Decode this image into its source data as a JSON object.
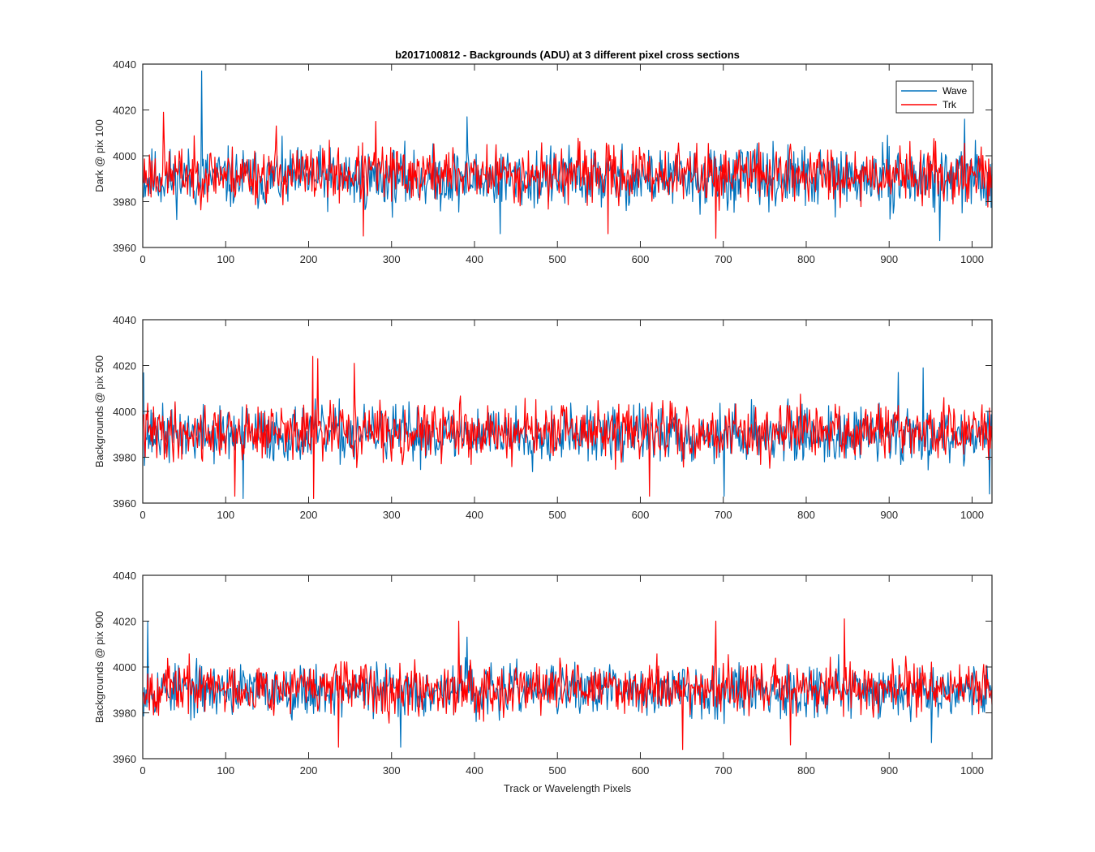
{
  "chart_data": [
    {
      "type": "line",
      "title": "b2017100812 - Backgrounds (ADU) at 3 different pixel cross sections",
      "xlabel": "",
      "ylabel": "Dark @ pix 100",
      "xlim": [
        0,
        1024
      ],
      "ylim": [
        3960,
        4040
      ],
      "xticks": [
        0,
        100,
        200,
        300,
        400,
        500,
        600,
        700,
        800,
        900,
        1000
      ],
      "yticks": [
        3960,
        3980,
        4000,
        4020,
        4040
      ],
      "legend": {
        "position": "top-right",
        "entries": [
          "Wave",
          "Trk"
        ]
      },
      "series": [
        {
          "name": "Wave",
          "color": "#0072BD",
          "mean": 3990,
          "spread": 13,
          "seed": 11,
          "peaks": [
            [
              70,
              4037
            ],
            [
              390,
              4017
            ],
            [
              990,
              4016
            ]
          ],
          "dips": [
            [
              960,
              3963
            ],
            [
              430,
              3966
            ]
          ]
        },
        {
          "name": "Trk",
          "color": "#FF0000",
          "mean": 3992,
          "spread": 12,
          "seed": 23,
          "peaks": [
            [
              24,
              4019
            ],
            [
              160,
              4013
            ],
            [
              280,
              4015
            ]
          ],
          "dips": [
            [
              265,
              3965
            ],
            [
              690,
              3964
            ],
            [
              560,
              3966
            ]
          ]
        }
      ]
    },
    {
      "type": "line",
      "title": "",
      "xlabel": "",
      "ylabel": "Backgrounds @ pix 500",
      "xlim": [
        0,
        1024
      ],
      "ylim": [
        3960,
        4040
      ],
      "xticks": [
        0,
        100,
        200,
        300,
        400,
        500,
        600,
        700,
        800,
        900,
        1000
      ],
      "yticks": [
        3960,
        3980,
        4000,
        4020,
        4040
      ],
      "series": [
        {
          "name": "Wave",
          "color": "#0072BD",
          "mean": 3990,
          "spread": 12,
          "seed": 37,
          "peaks": [
            [
              0,
              4017
            ],
            [
              940,
              4019
            ],
            [
              910,
              4017
            ]
          ],
          "dips": [
            [
              120,
              3962
            ],
            [
              700,
              3963
            ],
            [
              1020,
              3964
            ]
          ]
        },
        {
          "name": "Trk",
          "color": "#FF0000",
          "mean": 3991,
          "spread": 12,
          "seed": 41,
          "peaks": [
            [
              204,
              4024
            ],
            [
              210,
              4023
            ],
            [
              254,
              4021
            ]
          ],
          "dips": [
            [
              110,
              3963
            ],
            [
              205,
              3962
            ],
            [
              610,
              3963
            ]
          ]
        }
      ]
    },
    {
      "type": "line",
      "title": "",
      "xlabel": "Track or Wavelength Pixels",
      "ylabel": "Backgrounds @ pix 900",
      "xlim": [
        0,
        1024
      ],
      "ylim": [
        3960,
        4040
      ],
      "xticks": [
        0,
        100,
        200,
        300,
        400,
        500,
        600,
        700,
        800,
        900,
        1000
      ],
      "yticks": [
        3960,
        3980,
        4000,
        4020,
        4040
      ],
      "series": [
        {
          "name": "Wave",
          "color": "#0072BD",
          "mean": 3990,
          "spread": 11,
          "seed": 53,
          "peaks": [
            [
              5,
              4020
            ],
            [
              390,
              4013
            ]
          ],
          "dips": [
            [
              310,
              3965
            ],
            [
              950,
              3967
            ]
          ]
        },
        {
          "name": "Trk",
          "color": "#FF0000",
          "mean": 3991,
          "spread": 11,
          "seed": 67,
          "peaks": [
            [
              380,
              4020
            ],
            [
              845,
              4021
            ],
            [
              690,
              4020
            ]
          ],
          "dips": [
            [
              650,
              3964
            ],
            [
              235,
              3965
            ],
            [
              780,
              3966
            ]
          ]
        }
      ]
    }
  ]
}
